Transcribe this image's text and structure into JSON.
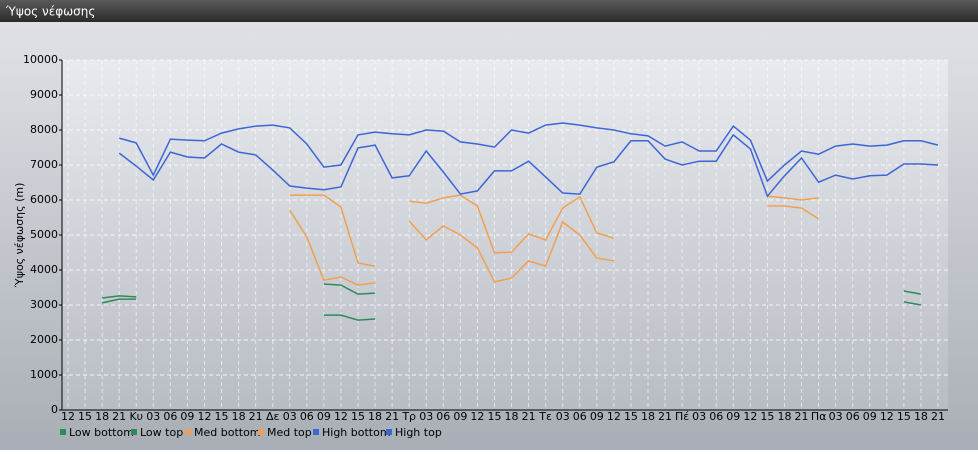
{
  "window_title": "Ύψος νέφωσης",
  "chart_data": {
    "type": "line",
    "y_label": "Ύψος νέφωσης (m)",
    "categories": [
      "12",
      "15",
      "18",
      "21",
      "Κυ",
      "03",
      "06",
      "09",
      "12",
      "15",
      "18",
      "21",
      "Δε",
      "03",
      "06",
      "09",
      "12",
      "15",
      "18",
      "21",
      "Τρ",
      "03",
      "06",
      "09",
      "12",
      "15",
      "18",
      "21",
      "Τε",
      "03",
      "06",
      "09",
      "12",
      "15",
      "18",
      "21",
      "Πέ",
      "03",
      "06",
      "09",
      "12",
      "15",
      "18",
      "21",
      "Πα",
      "03",
      "06",
      "09",
      "12",
      "15",
      "18",
      "21"
    ],
    "ylim": [
      0,
      10000
    ],
    "yticks": [
      0,
      1000,
      2000,
      3000,
      4000,
      5000,
      6000,
      7000,
      8000,
      9000,
      10000
    ],
    "grid": true,
    "legend": "bottom",
    "series": [
      {
        "name": "Low bottom",
        "color": "#2e8b57",
        "values": [
          null,
          null,
          3060,
          3170,
          3170,
          null,
          null,
          null,
          null,
          null,
          null,
          null,
          null,
          null,
          null,
          2710,
          2710,
          2570,
          2600,
          null,
          null,
          null,
          null,
          null,
          null,
          null,
          null,
          null,
          null,
          null,
          null,
          null,
          null,
          null,
          null,
          null,
          null,
          null,
          null,
          null,
          null,
          null,
          null,
          null,
          null,
          null,
          null,
          null,
          null,
          3090,
          3000,
          null
        ]
      },
      {
        "name": "Low top",
        "color": "#2e8b57",
        "values": [
          null,
          null,
          3200,
          3260,
          3230,
          null,
          null,
          null,
          null,
          null,
          null,
          null,
          null,
          null,
          null,
          3600,
          3570,
          3310,
          3340,
          null,
          null,
          null,
          null,
          null,
          null,
          null,
          null,
          null,
          null,
          null,
          null,
          null,
          null,
          null,
          null,
          null,
          null,
          null,
          null,
          null,
          null,
          null,
          null,
          null,
          null,
          null,
          null,
          null,
          null,
          3400,
          3310,
          null
        ]
      },
      {
        "name": "Med bottom",
        "color": "#f0a050",
        "values": [
          null,
          null,
          null,
          null,
          null,
          null,
          null,
          null,
          null,
          null,
          null,
          null,
          null,
          5710,
          4940,
          3710,
          3800,
          3570,
          3630,
          null,
          5400,
          4860,
          5260,
          5000,
          4630,
          3660,
          3770,
          4260,
          4110,
          5370,
          5000,
          4340,
          4260,
          null,
          null,
          null,
          null,
          null,
          null,
          null,
          null,
          5830,
          5830,
          5770,
          5460,
          null,
          null,
          null,
          null,
          null,
          null,
          null
        ]
      },
      {
        "name": "Med top",
        "color": "#f0a050",
        "values": [
          null,
          null,
          null,
          null,
          null,
          null,
          null,
          null,
          null,
          null,
          null,
          null,
          null,
          6140,
          6140,
          6140,
          5800,
          4200,
          4110,
          null,
          5970,
          5910,
          6060,
          6140,
          5830,
          4490,
          4510,
          5030,
          4860,
          5770,
          6090,
          5060,
          4910,
          null,
          null,
          null,
          null,
          null,
          null,
          null,
          null,
          6110,
          6060,
          6000,
          6060,
          null,
          null,
          null,
          null,
          null,
          null,
          null
        ]
      },
      {
        "name": "High bottom",
        "color": "#3b66d6",
        "values": [
          null,
          null,
          null,
          7340,
          6970,
          6570,
          7370,
          7230,
          7200,
          7600,
          7370,
          7290,
          6860,
          6400,
          6340,
          6290,
          6370,
          7490,
          7570,
          6630,
          6690,
          7400,
          6800,
          6170,
          6260,
          6830,
          6830,
          7110,
          6660,
          6200,
          6170,
          6940,
          7090,
          7690,
          7690,
          7170,
          7000,
          7110,
          7110,
          7860,
          7460,
          6110,
          6690,
          7200,
          6510,
          6710,
          6600,
          6690,
          6710,
          7030,
          7030,
          7000
        ]
      },
      {
        "name": "High top",
        "color": "#3b66d6",
        "values": [
          null,
          null,
          null,
          7770,
          7630,
          6710,
          7740,
          7710,
          7690,
          7910,
          8030,
          8110,
          8140,
          8060,
          7600,
          6940,
          7000,
          7860,
          7940,
          7890,
          7860,
          8000,
          7970,
          7660,
          7600,
          7510,
          8000,
          7910,
          8140,
          8200,
          8140,
          8060,
          8000,
          7890,
          7830,
          7540,
          7660,
          7400,
          7400,
          8110,
          7710,
          6540,
          7000,
          7400,
          7310,
          7540,
          7600,
          7540,
          7570,
          7690,
          7690,
          7570
        ]
      }
    ]
  }
}
